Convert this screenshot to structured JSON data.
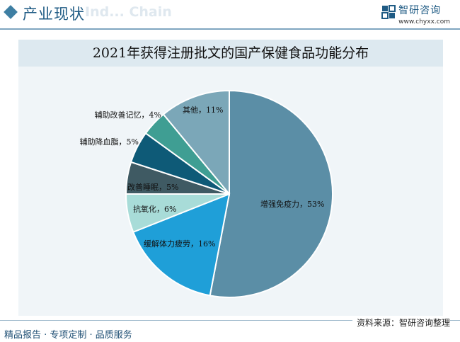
{
  "header": {
    "title": "产业现状",
    "watermark": "Ind... Chain",
    "brand_name": "智研咨询",
    "brand_url": "www.chyxx.com"
  },
  "colors": {
    "accent": "#1f5b84",
    "slice_1": "#5b8ea6",
    "slice_2": "#1f9fd8",
    "slice_3": "#a8dcd8",
    "slice_4": "#3f5a63",
    "slice_5": "#0e5a77",
    "slice_6": "#3f9e93",
    "slice_7": "#7ba7b8"
  },
  "chart_data": {
    "type": "pie",
    "title": "2021年获得注册批文的国产保健食品功能分布",
    "slices": [
      {
        "label": "增强免疫力，53%",
        "value": 53
      },
      {
        "label": "缓解体力疲劳，16%",
        "value": 16
      },
      {
        "label": "抗氧化，6%",
        "value": 6
      },
      {
        "label": "改善睡眠，5%",
        "value": 5
      },
      {
        "label": "辅助降血脂，5%",
        "value": 5
      },
      {
        "label": "辅助改善记忆，4%",
        "value": 4
      },
      {
        "label": "其他，11%",
        "value": 11
      }
    ]
  },
  "footer": {
    "source": "资料来源：智研咨询整理",
    "tagline": "精品报告 · 专项定制 · 品质服务"
  }
}
